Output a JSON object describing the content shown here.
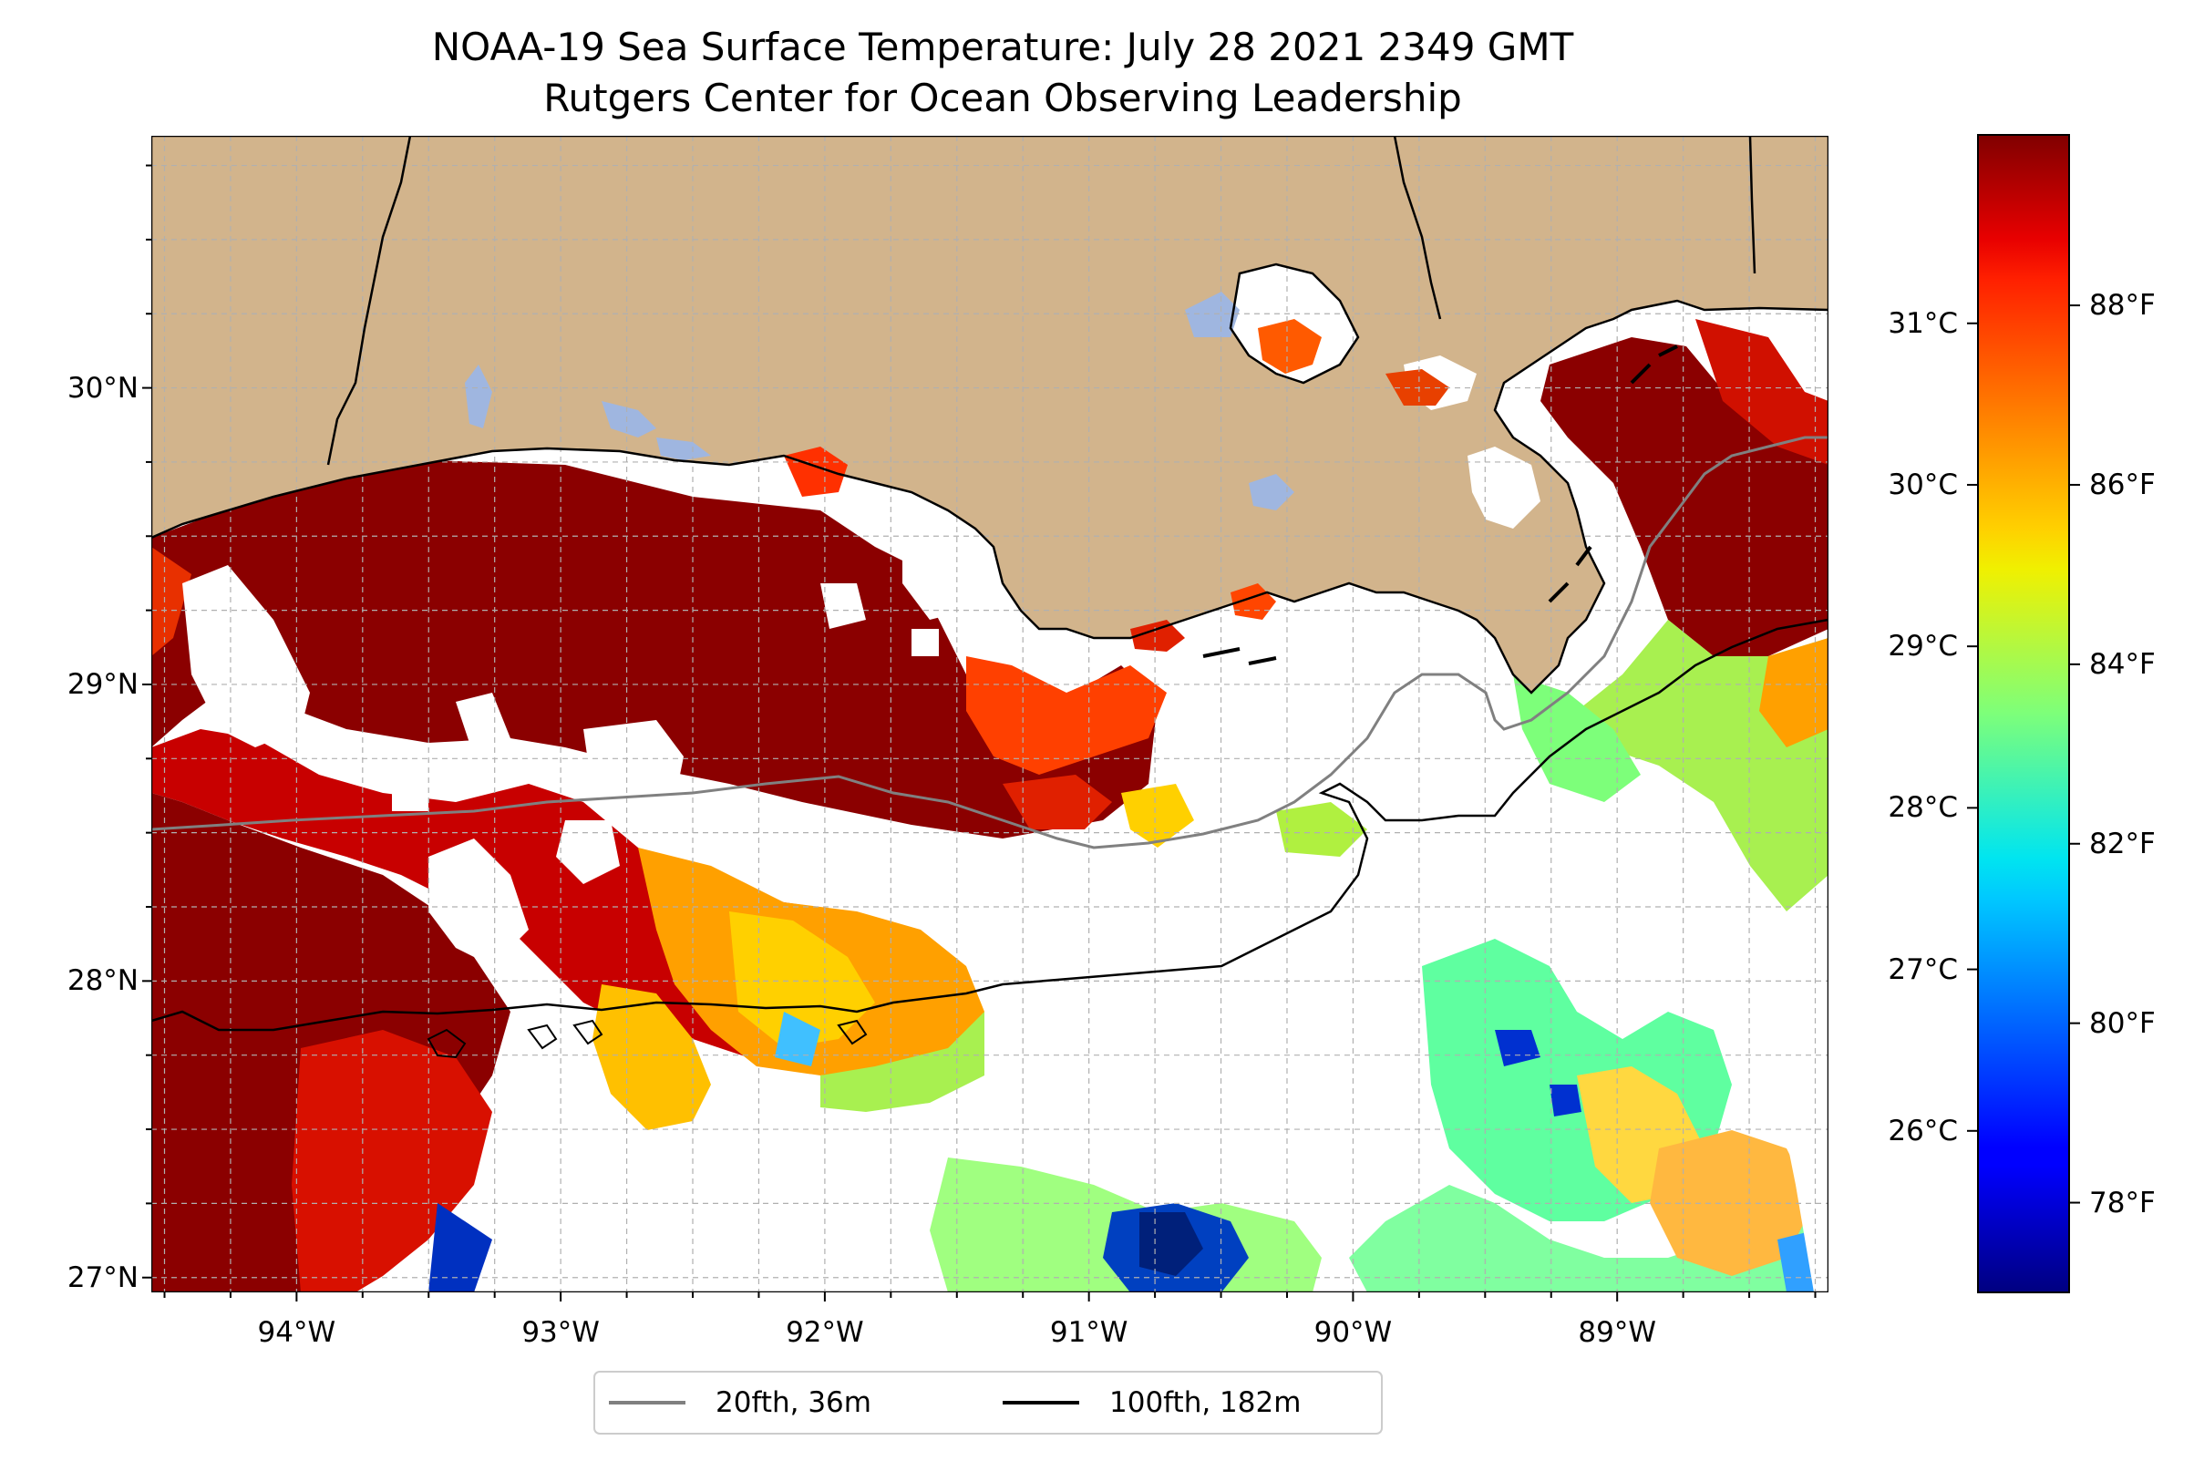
{
  "map": {
    "title_line1": "NOAA-19 Sea Surface Temperature: July 28 2021 2349 GMT",
    "title_line2": "Rutgers Center for Ocean Observing Leadership",
    "region": "Northern Gulf of Mexico, Louisiana coast",
    "lon_range": [
      -94.55,
      -88.2
    ],
    "lat_range": [
      26.95,
      30.85
    ],
    "gridlines": true,
    "latitude_ticks": [
      {
        "value": 30,
        "label": "30°N"
      },
      {
        "value": 29,
        "label": "29°N"
      },
      {
        "value": 28,
        "label": "28°N"
      },
      {
        "value": 27,
        "label": "27°N"
      }
    ],
    "longitude_ticks": [
      {
        "value": -94,
        "label": "94°W"
      },
      {
        "value": -93,
        "label": "93°W"
      },
      {
        "value": -92,
        "label": "92°W"
      },
      {
        "value": -91,
        "label": "91°W"
      },
      {
        "value": -90,
        "label": "90°W"
      },
      {
        "value": -89,
        "label": "89°W"
      }
    ],
    "colors": {
      "land": "#d2b48c",
      "lakes": "#9fb6e0",
      "coastline": "#000000",
      "no_data": "#ffffff",
      "isobath_20fth": "#808080",
      "isobath_100fth": "#000000"
    }
  },
  "colorbar": {
    "colormap": "jet",
    "range_f": [
      77.0,
      89.9
    ],
    "celsius_ticks": [
      {
        "value": 31,
        "label": "31°C"
      },
      {
        "value": 30,
        "label": "30°C"
      },
      {
        "value": 29,
        "label": "29°C"
      },
      {
        "value": 28,
        "label": "28°C"
      },
      {
        "value": 27,
        "label": "27°C"
      },
      {
        "value": 26,
        "label": "26°C"
      }
    ],
    "fahrenheit_ticks": [
      {
        "value": 88,
        "label": "88°F"
      },
      {
        "value": 86,
        "label": "86°F"
      },
      {
        "value": 84,
        "label": "84°F"
      },
      {
        "value": 82,
        "label": "82°F"
      },
      {
        "value": 80,
        "label": "80°F"
      },
      {
        "value": 78,
        "label": "78°F"
      }
    ]
  },
  "legend": {
    "placement": "bottom-center",
    "items": [
      {
        "label": "20fth, 36m",
        "color": "#808080"
      },
      {
        "label": "100fth, 182m",
        "color": "#000000"
      }
    ]
  }
}
